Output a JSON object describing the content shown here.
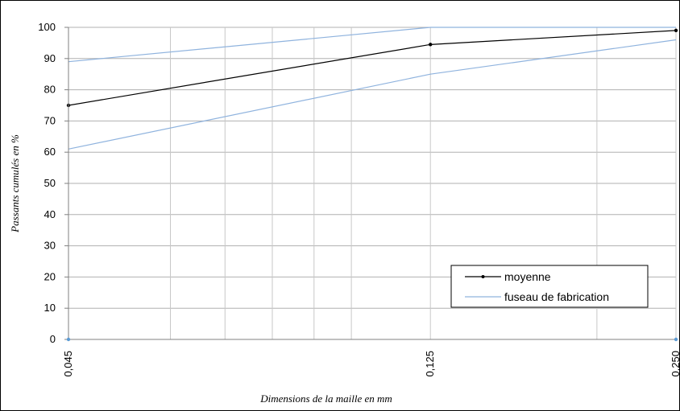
{
  "chart_data": {
    "type": "line",
    "xlabel": "Dimensions de la maille en mm",
    "ylabel": "Passants cumulés en %",
    "x_scale": "log",
    "x_ticks": [
      "0,045",
      "0,125",
      "0,250"
    ],
    "x": [
      0.045,
      0.125,
      0.25
    ],
    "ylim": [
      0,
      100
    ],
    "y_ticks": [
      0,
      10,
      20,
      30,
      40,
      50,
      60,
      70,
      80,
      90,
      100
    ],
    "grid": true,
    "legend_position": "bottom-right",
    "series": [
      {
        "name": "moyenne",
        "color": "#000000",
        "markers": true,
        "values": [
          75,
          94.5,
          99
        ]
      },
      {
        "name": "fuseau de fabrication",
        "color": "#8fb3de",
        "markers": false,
        "values": [
          89,
          100,
          100
        ]
      },
      {
        "name": "",
        "color": "#8fb3de",
        "markers": false,
        "values": [
          61,
          85,
          96
        ]
      }
    ]
  }
}
